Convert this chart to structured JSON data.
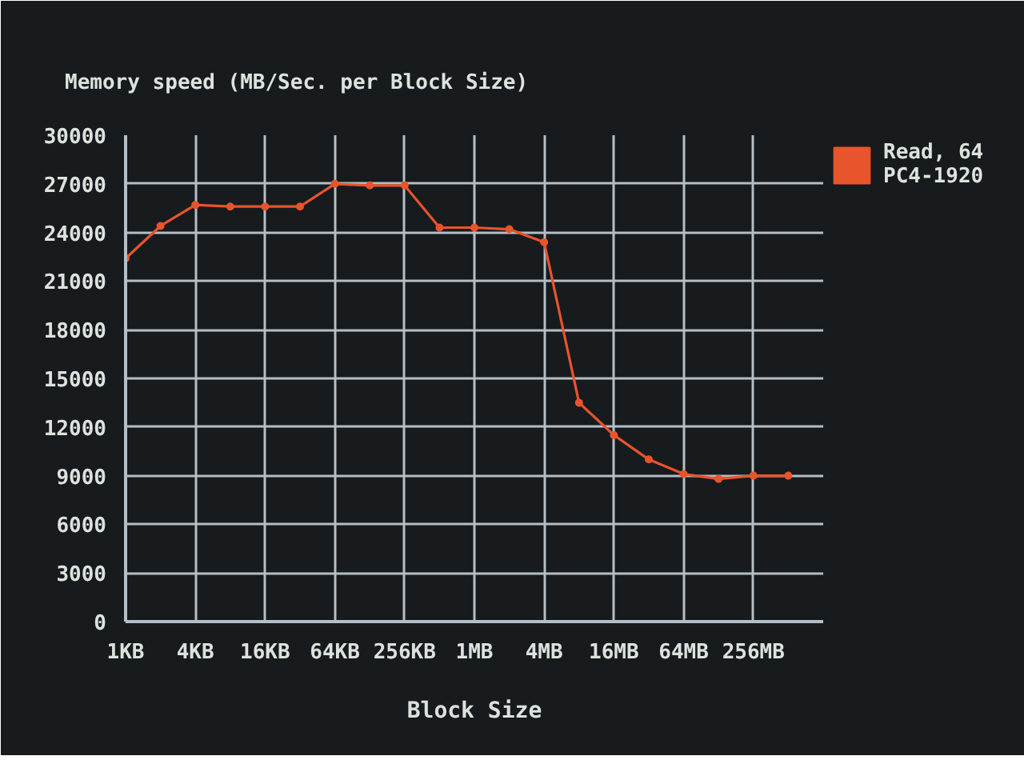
{
  "chart_data": {
    "type": "line",
    "title": "Memory speed (MB/Sec. per Block Size)",
    "xlabel": "Block Size",
    "categories": [
      "1KB",
      null,
      "4KB",
      null,
      "16KB",
      null,
      "64KB",
      null,
      "256KB",
      null,
      "1MB",
      null,
      "4MB",
      null,
      "16MB",
      null,
      "64MB",
      null,
      "256MB",
      null
    ],
    "series": [
      {
        "name": "Read, 64\nPC4-1920",
        "color": "#e8542c",
        "values": [
          22400,
          24400,
          25700,
          25600,
          25600,
          25600,
          27000,
          26900,
          26900,
          24300,
          24300,
          24200,
          23400,
          13500,
          11500,
          10000,
          9100,
          8800,
          9000,
          9000
        ]
      }
    ],
    "ylim": [
      0,
      30000
    ],
    "yticks": [
      0,
      3000,
      6000,
      9000,
      12000,
      15000,
      18000,
      21000,
      24000,
      27000,
      30000
    ],
    "grid": true,
    "legend": "top right",
    "marker": "circle",
    "line_style": "solid"
  }
}
